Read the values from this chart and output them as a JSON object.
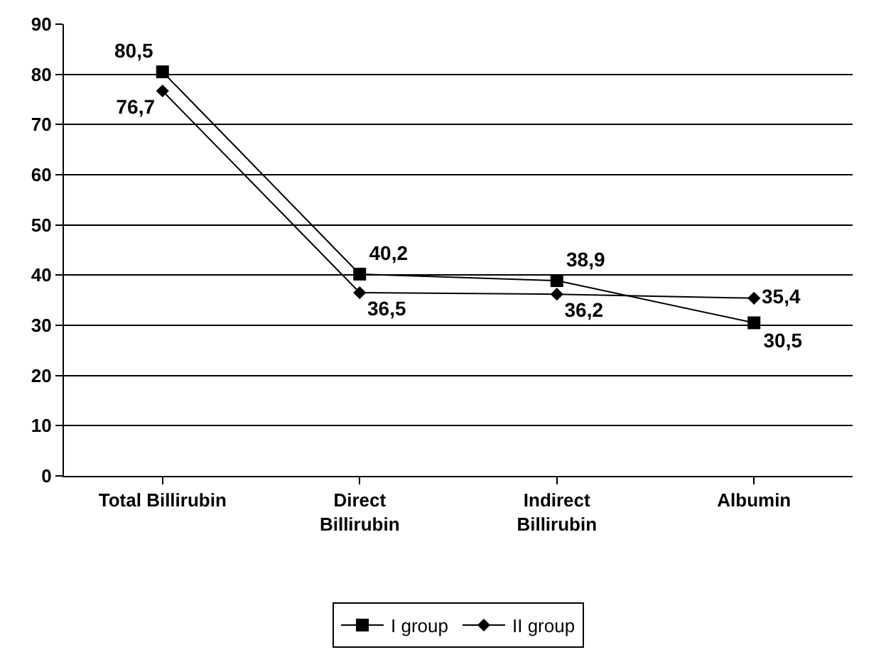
{
  "chart_data": {
    "type": "line",
    "categories": [
      "Total Billirubin",
      "Direct\nBillirubin",
      "Indirect\nBillirubin",
      "Albumin"
    ],
    "series": [
      {
        "name": "I group",
        "color": "#000000",
        "marker": "square",
        "values": [
          80.5,
          40.2,
          38.9,
          30.5
        ],
        "value_labels": [
          "80,5",
          "40,2",
          "38,9",
          "30,5"
        ]
      },
      {
        "name": "II group",
        "color": "#000000",
        "marker": "diamond",
        "values": [
          76.7,
          36.5,
          36.2,
          35.4
        ],
        "value_labels": [
          "76,7",
          "36,5",
          "36,2",
          "35,4"
        ]
      }
    ],
    "ylim": [
      0,
      90
    ],
    "yticks": [
      0,
      10,
      20,
      30,
      40,
      50,
      60,
      70,
      80,
      90
    ],
    "grid": "y",
    "legend": "bottom",
    "line_style": "solid"
  }
}
